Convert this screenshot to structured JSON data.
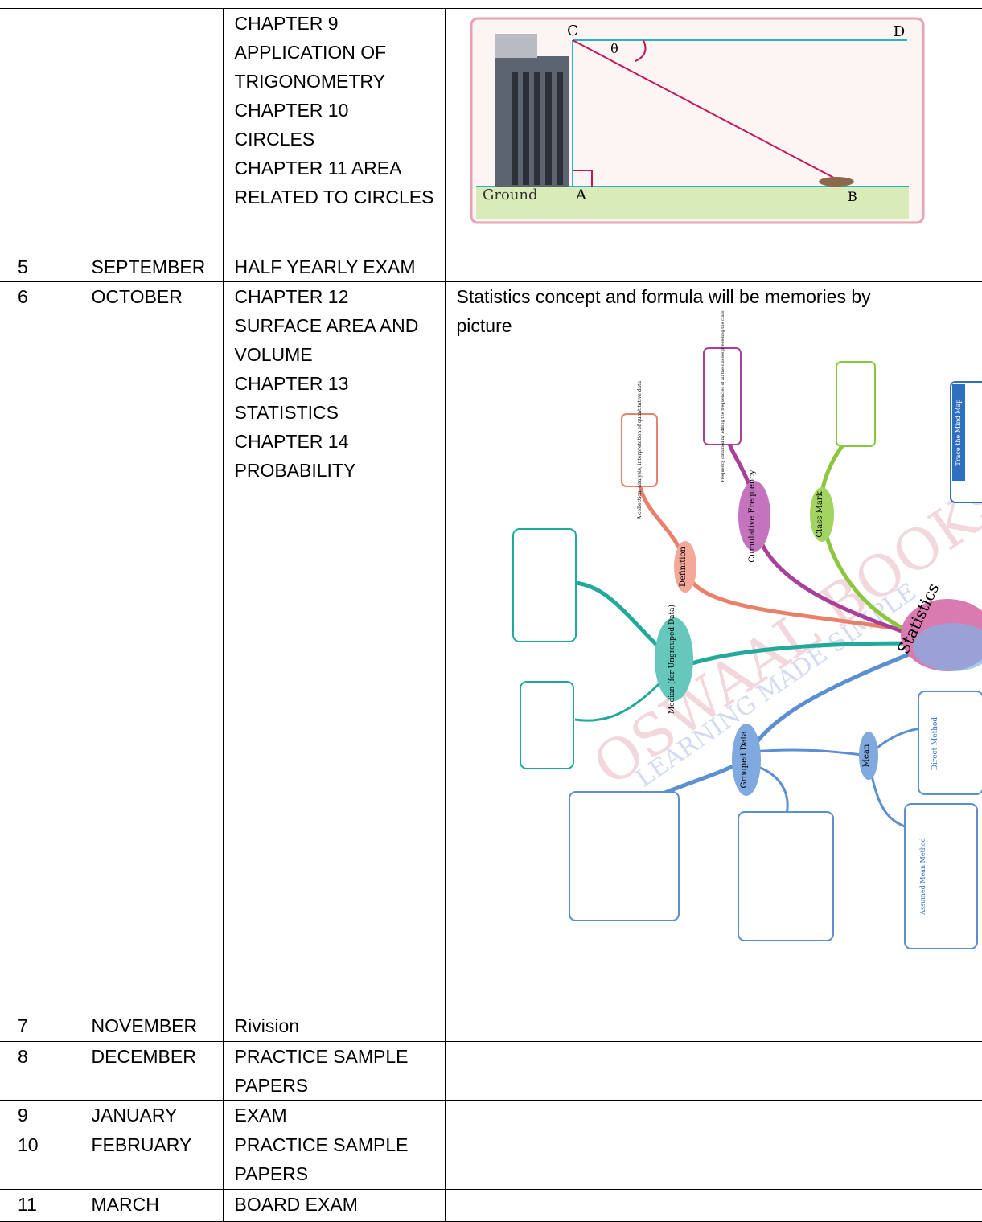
{
  "table": {
    "rows": [
      {
        "topics": [
          "CHAPTER 9",
          "APPLICATION OF",
          "TRIGONOMETRY",
          "CHAPTER 10",
          "CIRCLES",
          "CHAPTER 11 AREA",
          "RELATED TO CIRCLES"
        ]
      },
      {
        "no": "5",
        "month": "SEPTEMBER",
        "topics": [
          "HALF YEARLY EXAM"
        ]
      },
      {
        "no": "6",
        "month": "OCTOBER",
        "topics": [
          "CHAPTER 12",
          "SURFACE AREA AND",
          "VOLUME",
          "CHAPTER 13",
          "STATISTICS",
          "CHAPTER 14",
          "PROBABILITY"
        ],
        "activity": [
          "Statistics concept and formula will be memories by",
          "picture"
        ]
      },
      {
        "no": "7",
        "month": "NOVEMBER",
        "topics": [
          "Rivision"
        ]
      },
      {
        "no": "8",
        "month": "DECEMBER",
        "topics": [
          "PRACTICE SAMPLE",
          "PAPERS"
        ]
      },
      {
        "no": "9",
        "month": "JANUARY",
        "topics": [
          "EXAM"
        ]
      },
      {
        "no": "10",
        "month": "FEBRUARY",
        "topics": [
          "PRACTICE SAMPLE",
          "PAPERS"
        ]
      },
      {
        "no": "11",
        "month": "MARCH",
        "topics": [
          "BOARD EXAM"
        ]
      }
    ]
  },
  "figure": {
    "c": "C",
    "d": "D",
    "theta": "θ",
    "ground": "Ground",
    "a": "A",
    "b": "B"
  },
  "mind_map": {
    "center": "Statistics",
    "watermark": "OSWAAL BOOKS",
    "tagline": "LEARNING MADE SIMPLE",
    "nodes": [
      "Definition",
      "Cumulative Frequency",
      "Class Mark",
      "Median (for Ungrouped Data)",
      "Grouped Data",
      "Mean"
    ],
    "boxes": [
      "A collection, analysis, interpretation of quantitative data",
      "Frequency obtained by adding the frequencies of all the classes preceding the class",
      "Direct Method",
      "Assumed Mean Method",
      "Trace the Mind Map"
    ]
  }
}
